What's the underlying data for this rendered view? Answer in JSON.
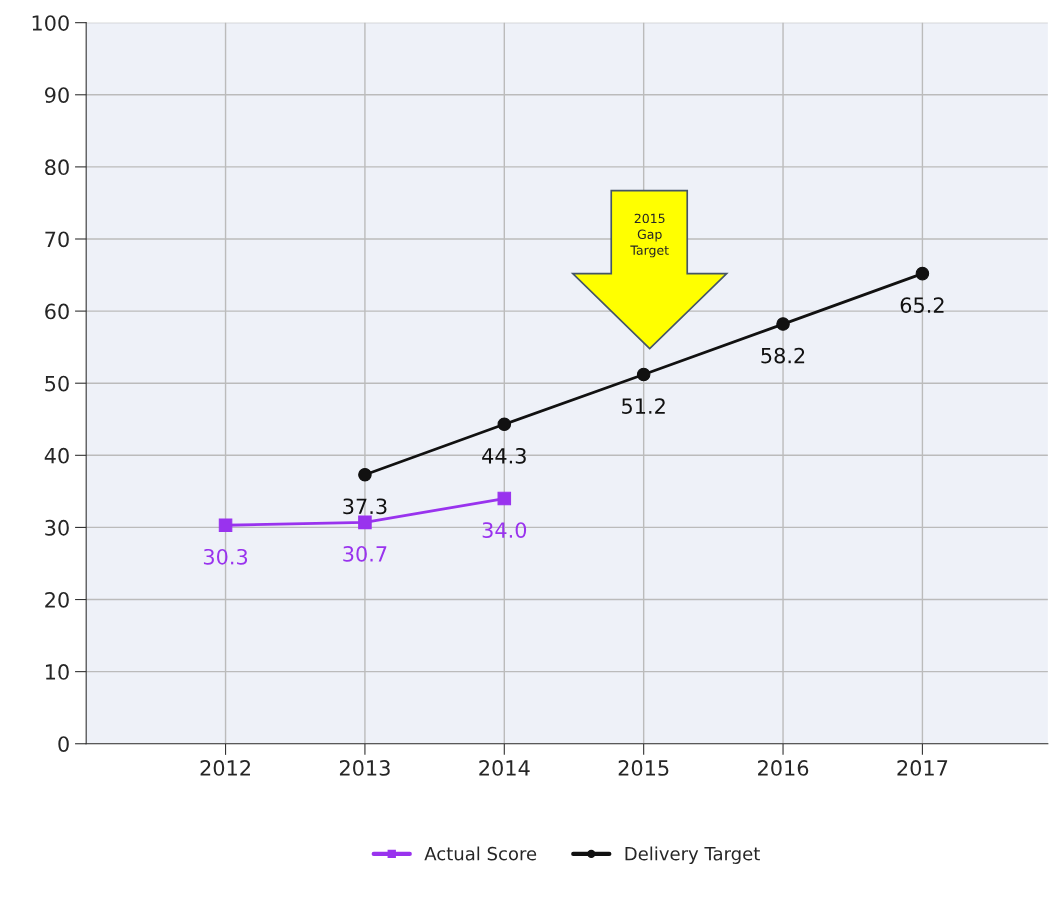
{
  "chart_data": {
    "type": "line",
    "categories": [
      "2012",
      "2013",
      "2014",
      "2015",
      "2016",
      "2017"
    ],
    "series": [
      {
        "name": "Actual Score",
        "color": "#9933ee",
        "marker": "square",
        "values": [
          30.3,
          30.7,
          34.0,
          null,
          null,
          null
        ],
        "value_labels": [
          "30.3",
          "30.7",
          "34.0",
          null,
          null,
          null
        ]
      },
      {
        "name": "Delivery Target",
        "color": "#111111",
        "marker": "circle",
        "values": [
          null,
          37.3,
          44.3,
          51.2,
          58.2,
          65.2
        ],
        "value_labels": [
          null,
          "37.3",
          "44.3",
          "51.2",
          "58.2",
          "65.2"
        ]
      }
    ],
    "ylim": [
      0,
      100
    ],
    "yticks": [
      0,
      10,
      20,
      30,
      40,
      50,
      60,
      70,
      80,
      90,
      100
    ],
    "grid": true,
    "legend": "bottom",
    "line_style": "solid",
    "annotations": [
      "2015\nGap\nTarget"
    ]
  }
}
